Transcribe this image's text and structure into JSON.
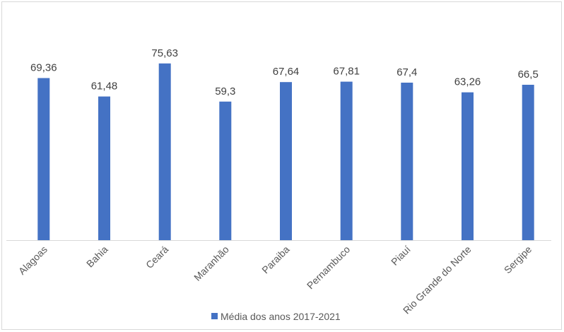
{
  "chart_data": {
    "type": "bar",
    "categories": [
      "Alagoas",
      "Bahia",
      "Ceará",
      "Maranhão",
      "Paraiba",
      "Pernambuco",
      "Piauí",
      "Rio Grande do Norte",
      "Sergipe"
    ],
    "series": [
      {
        "name": "Média dos anos 2017-2021",
        "values": [
          69.36,
          61.48,
          75.63,
          59.3,
          67.64,
          67.81,
          67.4,
          63.26,
          66.5
        ],
        "value_labels": [
          "69,36",
          "61,48",
          "75,63",
          "59,3",
          "67,64",
          "67,81",
          "67,4",
          "63,26",
          "66,5"
        ]
      }
    ],
    "ylim": [
      0,
      82
    ],
    "y_axis_visible": false,
    "grid": false,
    "legend_position": "bottom",
    "colors": {
      "bar": "#4472c4",
      "axis": "#d9d9d9",
      "text": "#595959",
      "label": "#404040"
    }
  }
}
